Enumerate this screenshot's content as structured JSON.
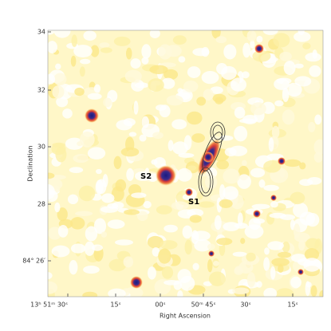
{
  "figure": {
    "x_label": "Right Ascension",
    "y_label": "Declination",
    "x_ticks": [
      "13ʰ 51ᵐ 30ˢ",
      "15ˢ",
      "00ˢ",
      "50ᵐ 45ˢ",
      "30ˢ",
      "15ˢ"
    ],
    "y_ticks": [
      "34",
      "32",
      "30",
      "28",
      "84° 26′"
    ],
    "annotations": [
      "S2",
      "S1"
    ]
  }
}
